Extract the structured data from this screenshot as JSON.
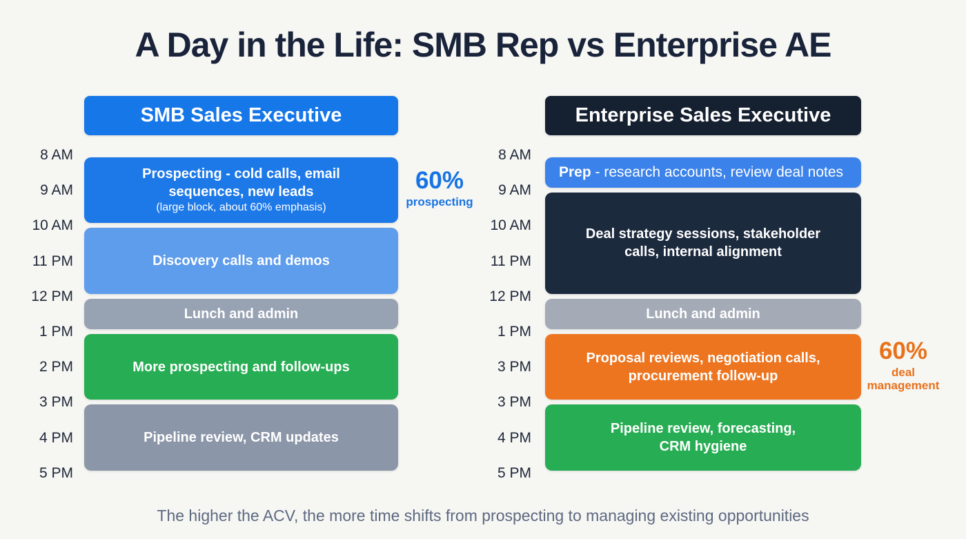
{
  "title": "A Day in the Life: SMB Rep vs Enterprise AE",
  "footer": "The higher the ACV, the more time shifts from prospecting to managing existing opportunities",
  "colors": {
    "background": "#f6f6f3",
    "title_text": "#19233a",
    "footer_text": "#5d6980",
    "smb_accent": "#1673e3",
    "enterprise_accent": "#e8721c"
  },
  "columns": [
    {
      "id": "smb",
      "header": {
        "label": "SMB Sales Executive",
        "bg": "#1677e8",
        "fg": "#ffffff"
      },
      "time_labels": [
        "8 AM",
        "9 AM",
        "10 AM",
        "11 PM",
        "12 PM",
        "1 PM",
        "2 PM",
        "3 PM",
        "4 PM",
        "5 PM"
      ],
      "blocks": [
        {
          "title": "Prospecting - cold calls, email\nsequences, new leads",
          "subtitle": "(large block, about 60% emphasis)",
          "start": 0,
          "end": 2,
          "bg": "#1d79e8"
        },
        {
          "title": "Discovery calls and demos",
          "start": 2,
          "end": 4,
          "bg": "#5e9cec"
        },
        {
          "title": "Lunch and admin",
          "start": 4,
          "end": 5,
          "bg": "#97a2b3"
        },
        {
          "title": "More prospecting and follow-ups",
          "start": 5,
          "end": 7,
          "bg": "#27ad53"
        },
        {
          "title": "Pipeline review, CRM updates",
          "start": 7,
          "end": 9,
          "bg": "#8b96a8"
        }
      ],
      "annotation": {
        "value": "60%",
        "label": "prospecting",
        "color": "#1673e3"
      }
    },
    {
      "id": "enterprise",
      "header": {
        "label": "Enterprise Sales Executive",
        "bg": "#152030",
        "fg": "#ffffff"
      },
      "time_labels": [
        "8 AM",
        "9 AM",
        "10 AM",
        "11 PM",
        "12 PM",
        "1 PM",
        "3 PM",
        "3 PM",
        "4 PM",
        "5 PM"
      ],
      "blocks": [
        {
          "title_prefix": "Prep",
          "title": " - research accounts, review deal notes",
          "start": 0,
          "end": 1,
          "bg": "#3b82ea",
          "align": "left"
        },
        {
          "title": "Deal strategy sessions, stakeholder\ncalls, internal alignment",
          "start": 1,
          "end": 4,
          "bg": "#1c2a3e"
        },
        {
          "title": "Lunch and admin",
          "start": 4,
          "end": 5,
          "bg": "#a4abb7"
        },
        {
          "title": "Proposal reviews, negotiation calls,\nprocurement follow-up",
          "start": 5,
          "end": 7,
          "bg": "#ed7520"
        },
        {
          "title": "Pipeline review, forecasting,\nCRM hygiene",
          "start": 7,
          "end": 9,
          "bg": "#27ad53"
        }
      ],
      "annotation": {
        "value": "60%",
        "label": "deal\nmanagement",
        "color": "#e8721c"
      }
    }
  ]
}
